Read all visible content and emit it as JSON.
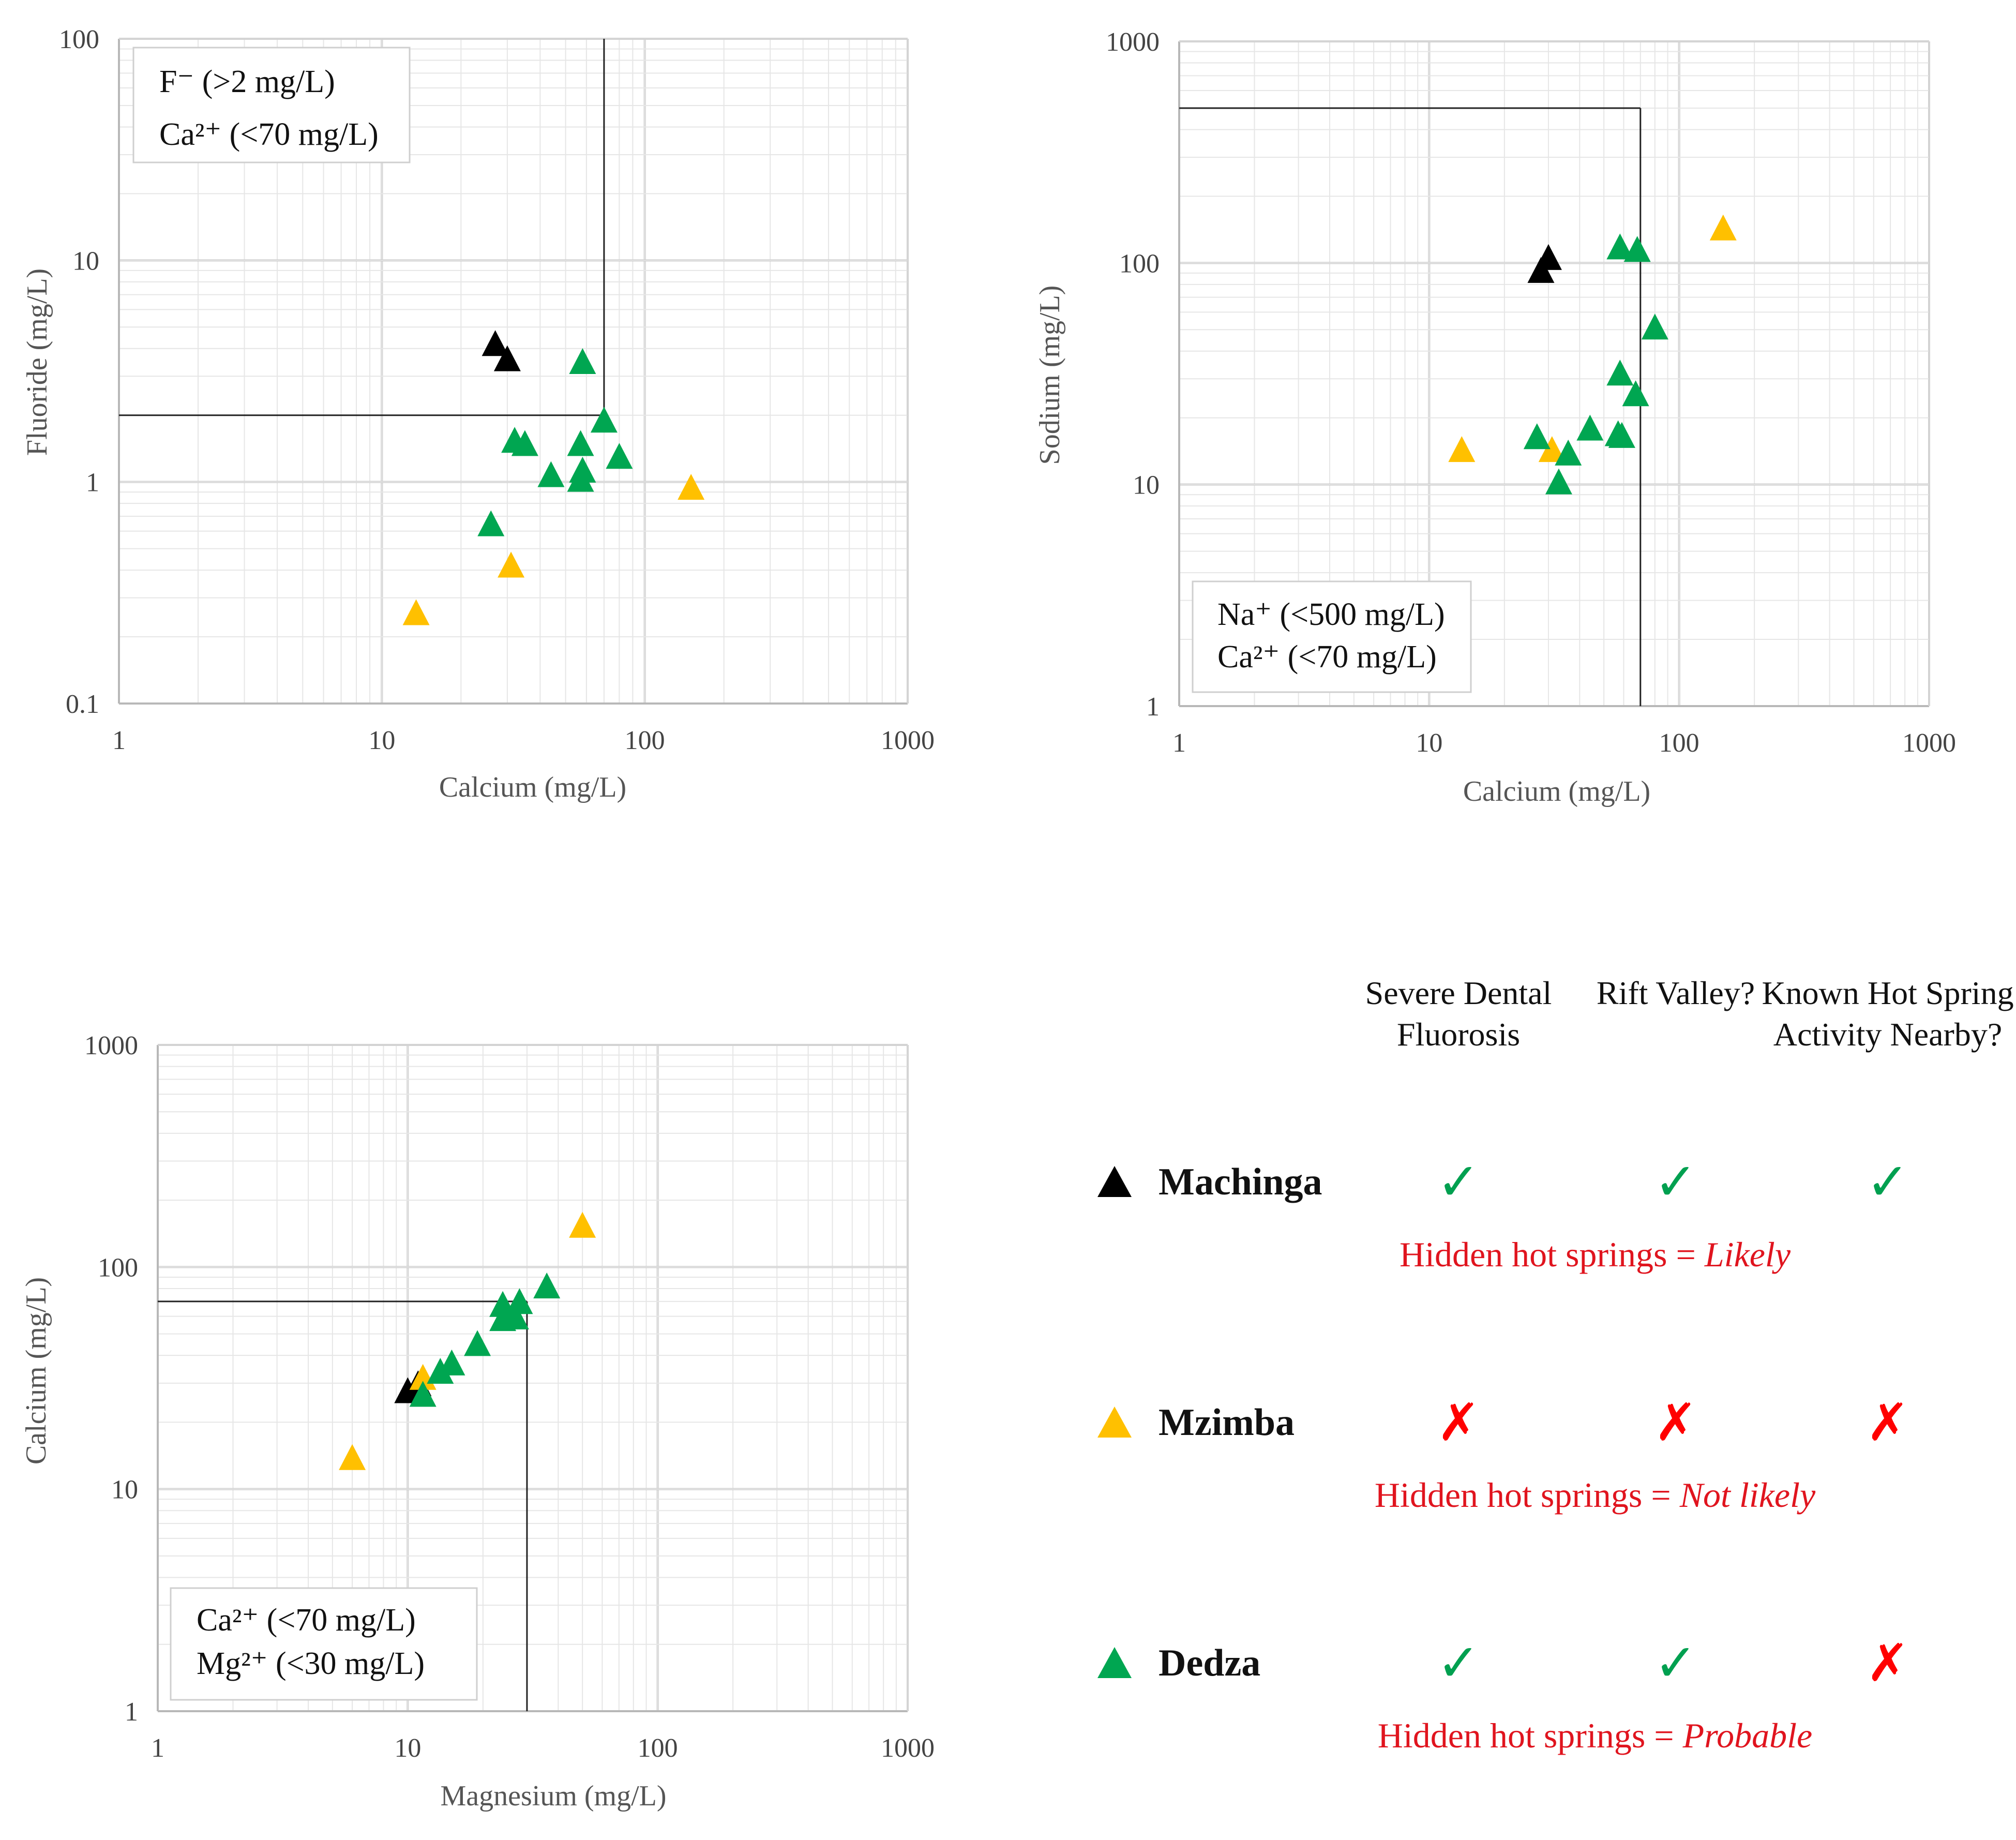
{
  "colors": {
    "machinga": "#000000",
    "mzimba": "#ffc000",
    "dedza": "#00a651",
    "check": "#00a050",
    "cross": "#ff0000",
    "verdict": "#e0141e"
  },
  "chart_data": [
    {
      "type": "scatter",
      "title": "",
      "xlabel": "Calcium (mg/L)",
      "ylabel": "Fluoride (mg/L)",
      "xscale": "log",
      "yscale": "log",
      "xlim": [
        1,
        1000
      ],
      "ylim": [
        0.1,
        100
      ],
      "xticks": [
        "1",
        "10",
        "100",
        "1000"
      ],
      "yticks": [
        "0.1",
        "1",
        "10",
        "100"
      ],
      "legend_box": [
        "F⁻ (>2 mg/L)",
        "Ca²⁺ (<70 mg/L)"
      ],
      "threshold_lines": [
        {
          "axis": "y",
          "value": 2,
          "from": 1,
          "to": 70
        },
        {
          "axis": "x",
          "value": 70,
          "from": 2,
          "to": 100
        }
      ],
      "series": [
        {
          "name": "Machinga",
          "color": "#000000",
          "points": [
            [
              27,
              4.1
            ],
            [
              30,
              3.5
            ]
          ]
        },
        {
          "name": "Mzimba",
          "color": "#ffc000",
          "points": [
            [
              13.5,
              0.25
            ],
            [
              31,
              0.41
            ],
            [
              150,
              0.92
            ]
          ]
        },
        {
          "name": "Dedza",
          "color": "#00a651",
          "points": [
            [
              58,
              3.4
            ],
            [
              70,
              1.85
            ],
            [
              32,
              1.5
            ],
            [
              35,
              1.45
            ],
            [
              57,
              1.45
            ],
            [
              80,
              1.27
            ],
            [
              44,
              1.05
            ],
            [
              57,
              1.0
            ],
            [
              58,
              1.1
            ],
            [
              26,
              0.63
            ]
          ]
        }
      ]
    },
    {
      "type": "scatter",
      "title": "",
      "xlabel": "Calcium (mg/L)",
      "ylabel": "Sodium (mg/L)",
      "xscale": "log",
      "yscale": "log",
      "xlim": [
        1,
        1000
      ],
      "ylim": [
        1,
        1000
      ],
      "xticks": [
        "1",
        "10",
        "100",
        "1000"
      ],
      "yticks": [
        "1",
        "10",
        "100",
        "1000"
      ],
      "legend_box": [
        "Na⁺ (<500 mg/L)",
        "Ca²⁺ (<70 mg/L)"
      ],
      "threshold_lines": [
        {
          "axis": "y",
          "value": 500,
          "from": 1,
          "to": 70
        },
        {
          "axis": "x",
          "value": 70,
          "from": 1,
          "to": 500
        }
      ],
      "series": [
        {
          "name": "Machinga",
          "color": "#000000",
          "points": [
            [
              28,
              90
            ],
            [
              30,
              103
            ]
          ]
        },
        {
          "name": "Mzimba",
          "color": "#ffc000",
          "points": [
            [
              150,
              140
            ],
            [
              13.5,
              14
            ],
            [
              31,
              14
            ]
          ]
        },
        {
          "name": "Dedza",
          "color": "#00a651",
          "points": [
            [
              58,
              115
            ],
            [
              68,
              112
            ],
            [
              80,
              50
            ],
            [
              58,
              31
            ],
            [
              67,
              25
            ],
            [
              44,
              17.5
            ],
            [
              57,
              16.5
            ],
            [
              59,
              16.2
            ],
            [
              27,
              16
            ],
            [
              36,
              13.5
            ],
            [
              33,
              10
            ]
          ]
        }
      ]
    },
    {
      "type": "scatter",
      "title": "",
      "xlabel": "Magnesium (mg/L)",
      "ylabel": "Calcium (mg/L)",
      "xscale": "log",
      "yscale": "log",
      "xlim": [
        1,
        1000
      ],
      "ylim": [
        1,
        1000
      ],
      "xticks": [
        "1",
        "10",
        "100",
        "1000"
      ],
      "yticks": [
        "1",
        "10",
        "100",
        "1000"
      ],
      "legend_box": [
        "Ca²⁺ (<70 mg/L)",
        "Mg²⁺ (<30 mg/L)"
      ],
      "threshold_lines": [
        {
          "axis": "y",
          "value": 70,
          "from": 1,
          "to": 30
        },
        {
          "axis": "x",
          "value": 30,
          "from": 1,
          "to": 70
        }
      ],
      "series": [
        {
          "name": "Machinga",
          "color": "#000000",
          "points": [
            [
              10,
              27
            ],
            [
              11,
              29
            ]
          ]
        },
        {
          "name": "Mzimba",
          "color": "#ffc000",
          "points": [
            [
              6,
              13.5
            ],
            [
              11.5,
              31
            ],
            [
              50,
              150
            ]
          ]
        },
        {
          "name": "Dedza",
          "color": "#00a651",
          "points": [
            [
              11.5,
              26
            ],
            [
              13.5,
              33
            ],
            [
              15,
              36
            ],
            [
              19,
              44
            ],
            [
              24,
              57
            ],
            [
              25,
              60
            ],
            [
              27,
              58
            ],
            [
              28,
              68
            ],
            [
              24,
              66
            ],
            [
              36,
              80
            ]
          ]
        }
      ]
    }
  ],
  "summary": {
    "headers": [
      "Severe Dental Fluorosis",
      "Rift Valley?",
      "Known Hot Spring Activity Nearby?"
    ],
    "regions": [
      {
        "name": "Machinga",
        "marks": [
          "✓",
          "✓",
          "✓"
        ],
        "verdict_prefix": "Hidden hot springs = ",
        "verdict": "Likely"
      },
      {
        "name": "Mzimba",
        "marks": [
          "✗",
          "✗",
          "✗"
        ],
        "verdict_prefix": "Hidden hot springs = ",
        "verdict": "Not likely"
      },
      {
        "name": "Dedza",
        "marks": [
          "✓",
          "✓",
          "✗"
        ],
        "verdict_prefix": "Hidden hot springs = ",
        "verdict": "Probable"
      }
    ]
  }
}
